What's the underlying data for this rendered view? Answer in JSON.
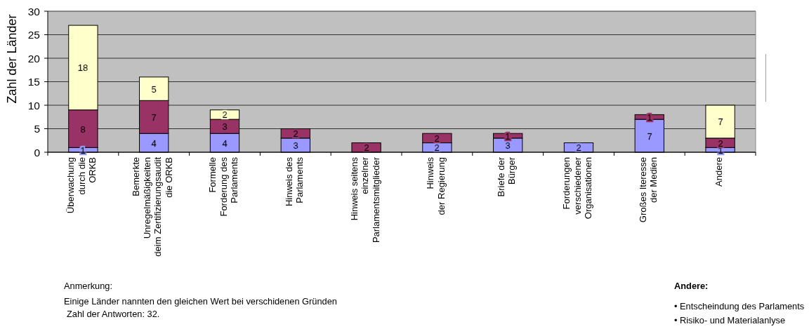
{
  "chart_data": {
    "type": "bar",
    "stacked": true,
    "ylabel": "Zahl der Länder",
    "categories": [
      "Überwachung\ndurch die\nORKB",
      "Bemerkte\nUnregelmäßigkeiten\ndeim Zertifizierungsaudit\ndie ORKB",
      "Formelle\nForderung des\nParlaments",
      "Hinweis des\nParlaments",
      "Hinweis seitens\neinzelner\nParlamentsmitglieder",
      "Hinweis\nder Regierung",
      "Briefe der\nBürger",
      "Forderungen\nverschiedener\nOrganisationen",
      "Großes Iteresse\nder Medien",
      "Andere"
    ],
    "series": [
      {
        "color": "#9999ff",
        "values": [
          1,
          4,
          4,
          3,
          null,
          2,
          3,
          2,
          7,
          1
        ]
      },
      {
        "color": "#993366",
        "values": [
          8,
          7,
          3,
          2,
          2,
          2,
          1,
          null,
          1,
          2
        ]
      },
      {
        "color": "#ffffcc",
        "values": [
          18,
          5,
          2,
          null,
          null,
          null,
          null,
          null,
          null,
          7
        ]
      }
    ],
    "ylim": [
      0,
      30
    ],
    "yticks": [
      0,
      5,
      10,
      15,
      20,
      25,
      30
    ],
    "grid": "y",
    "data_labels": true,
    "annotations": [
      "Anmerkung:",
      "Einige Länder nannten den gleichen Wert bei verschidenen Gründen",
      "Zahl der Antworten: 32.",
      "Andere:",
      "• Entscheindung des Parlaments",
      "• Risiko- und Materialanlyse"
    ]
  }
}
